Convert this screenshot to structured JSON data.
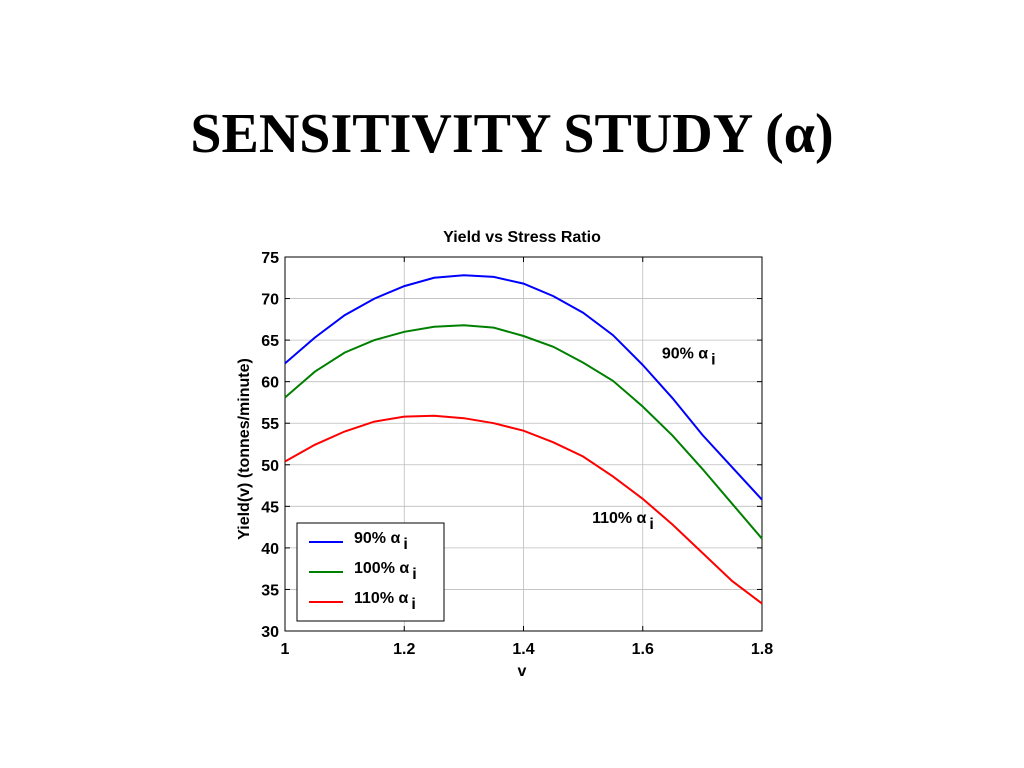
{
  "slide": {
    "title": "SENSITIVITY STUDY (α)"
  },
  "chart_data": {
    "type": "line",
    "title": "Yield vs Stress Ratio",
    "xlabel": "v",
    "ylabel": "Yield(v) (tonnes/minute)",
    "xlim": [
      1,
      1.8
    ],
    "ylim": [
      30,
      75
    ],
    "xticks": [
      1,
      1.2,
      1.4,
      1.6,
      1.8
    ],
    "xtick_labels": [
      "1",
      "1.2",
      "1.4",
      "1.6",
      "1.8"
    ],
    "yticks": [
      30,
      35,
      40,
      45,
      50,
      55,
      60,
      65,
      70,
      75
    ],
    "ytick_labels": [
      "30",
      "35",
      "40",
      "45",
      "50",
      "55",
      "60",
      "65",
      "70",
      "75"
    ],
    "grid": true,
    "legend_position": "bottom-left",
    "x": [
      1.0,
      1.05,
      1.1,
      1.15,
      1.2,
      1.25,
      1.3,
      1.35,
      1.4,
      1.45,
      1.5,
      1.55,
      1.6,
      1.65,
      1.7,
      1.75,
      1.8
    ],
    "series": [
      {
        "name": "90% α",
        "subscript": "i",
        "color": "#0000ff",
        "values": [
          62.2,
          65.3,
          68.0,
          70.0,
          71.5,
          72.5,
          72.8,
          72.6,
          71.8,
          70.3,
          68.3,
          65.6,
          62.0,
          58.0,
          53.6,
          49.7,
          45.8
        ]
      },
      {
        "name": "100% α",
        "subscript": "i",
        "color": "#008000",
        "values": [
          58.1,
          61.2,
          63.5,
          65.0,
          66.0,
          66.6,
          66.8,
          66.5,
          65.5,
          64.2,
          62.3,
          60.1,
          57.0,
          53.5,
          49.5,
          45.3,
          41.1
        ]
      },
      {
        "name": "110% α",
        "subscript": "i",
        "color": "#ff0000",
        "values": [
          50.4,
          52.4,
          54.0,
          55.2,
          55.8,
          55.9,
          55.6,
          55.0,
          54.1,
          52.7,
          51.0,
          48.6,
          45.9,
          42.8,
          39.4,
          36.0,
          33.3
        ]
      }
    ],
    "annotations": [
      {
        "text": "90% α",
        "subscript": "i",
        "x": 1.632,
        "y": 62.8
      },
      {
        "text": "110% α",
        "subscript": "i",
        "x": 1.515,
        "y": 43.0
      }
    ]
  }
}
